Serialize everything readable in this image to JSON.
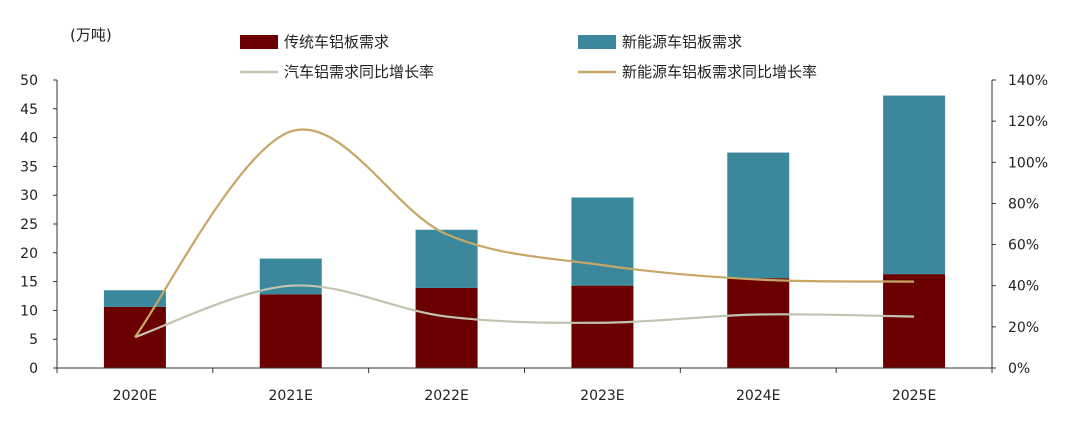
{
  "chart_data": {
    "type": "bar",
    "stacked": true,
    "categories": [
      "2020E",
      "2021E",
      "2022E",
      "2023E",
      "2024E",
      "2025E"
    ],
    "y_unit_label": "(万吨)",
    "ylim_left": [
      0,
      50
    ],
    "yticks_left": [
      "0",
      "5",
      "10",
      "15",
      "20",
      "25",
      "30",
      "35",
      "40",
      "45",
      "50"
    ],
    "ylim_right": [
      0,
      1.4
    ],
    "yticks_right": [
      "0%",
      "20%",
      "40%",
      "60%",
      "80%",
      "100%",
      "120%",
      "140%"
    ],
    "grid": false,
    "legend_position": "top",
    "series": [
      {
        "name": "传统车铝板需求",
        "kind": "bar",
        "axis": "left",
        "color": "#6b0000",
        "values": [
          10.6,
          12.8,
          13.9,
          14.3,
          15.6,
          16.3
        ]
      },
      {
        "name": "新能源车铝板需求",
        "kind": "bar",
        "axis": "left",
        "color": "#3b889c",
        "values": [
          2.9,
          6.2,
          10.1,
          15.3,
          21.8,
          31.0
        ]
      },
      {
        "name": "汽车铝需求同比增长率",
        "kind": "line",
        "axis": "right",
        "color": "#c3c3b1",
        "values": [
          0.15,
          0.4,
          0.25,
          0.22,
          0.26,
          0.25
        ]
      },
      {
        "name": "新能源车铝板需求同比增长率",
        "kind": "line",
        "axis": "right",
        "color": "#c8a766",
        "values": [
          0.15,
          1.15,
          0.65,
          0.5,
          0.43,
          0.42
        ]
      }
    ]
  }
}
